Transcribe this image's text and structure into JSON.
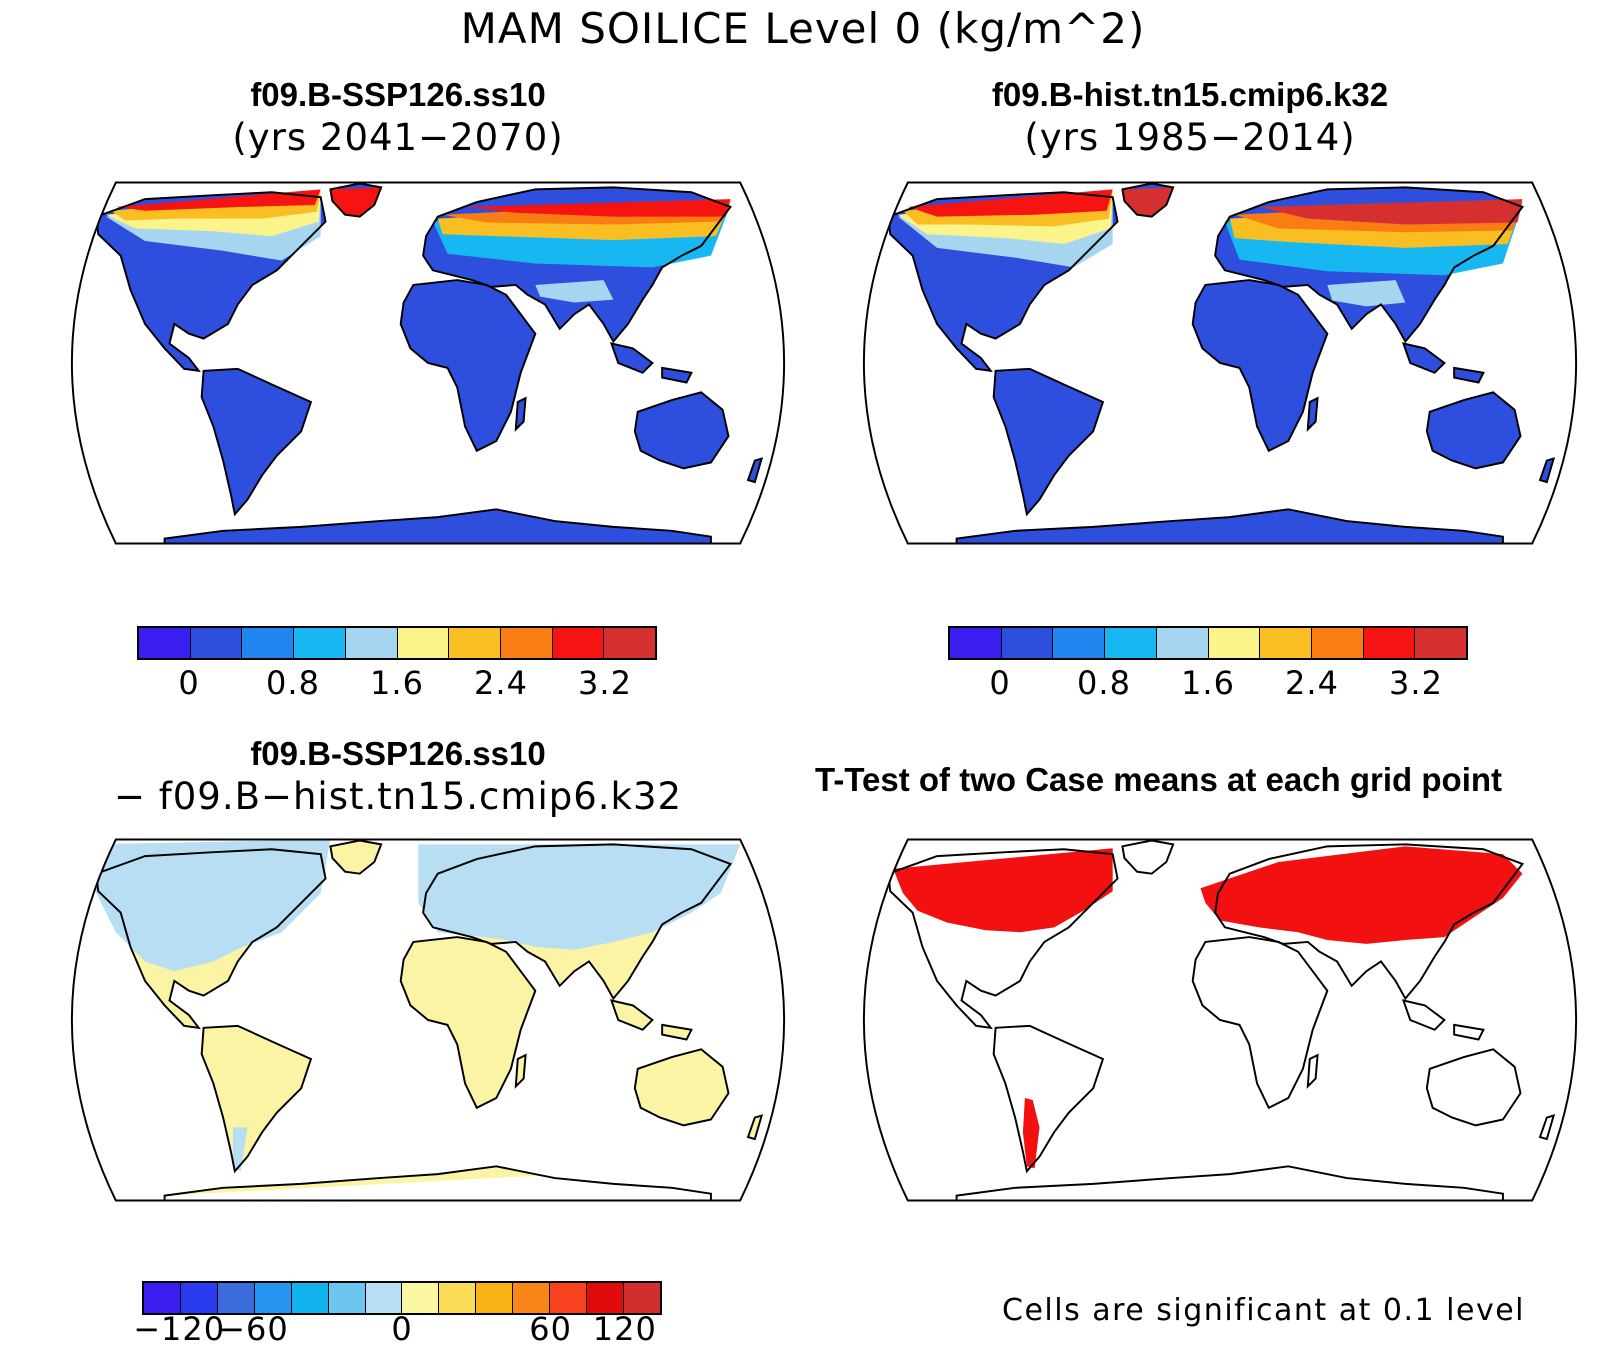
{
  "title": "MAM SOILICE Level 0 (kg/m^2)",
  "panels": [
    {
      "title": "f09.B-SSP126.ss10",
      "subtitle": "(yrs 2041−2070)",
      "fill": "blue-model"
    },
    {
      "title": "f09.B-hist.tn15.cmip6.k32",
      "subtitle": "(yrs 1985−2014)",
      "fill": "blue-model"
    },
    {
      "title": "f09.B-SSP126.ss10",
      "subtitle": "− f09.B−hist.tn15.cmip6.k32",
      "fill": "difference"
    },
    {
      "title": "T-Test of two Case means at each grid point",
      "subtitle": "",
      "fill": "ttest"
    }
  ],
  "colorbars": {
    "model": {
      "colors": [
        "#3a1ef0",
        "#2e4fdd",
        "#1f86f0",
        "#17b8f2",
        "#a6d6ef",
        "#fbf48a",
        "#f9be21",
        "#f97d12",
        "#f51411",
        "#d5302f"
      ],
      "tick_labels": [
        "0",
        "0.8",
        "1.6",
        "2.4",
        "3.2"
      ]
    },
    "diff": {
      "colors": [
        "#3a1ef0",
        "#2a3bf2",
        "#3a6cdb",
        "#2594ef",
        "#11b3ef",
        "#6cc6ef",
        "#b7def2",
        "#fbf6a4",
        "#fbdc56",
        "#f9b214",
        "#f98717",
        "#f9421d",
        "#e20b0b",
        "#d22e2d"
      ],
      "tick_labels": [
        "−120",
        "−60",
        "0",
        "60",
        "120"
      ]
    }
  },
  "significance_note": "Cells are significant at 0.1 level",
  "colors": {
    "land_base": "#2e4fdd",
    "ocean": "#ffffff",
    "significant": "#f21010",
    "diff_north": "#b7def2",
    "diff_south": "#fbf4a4"
  }
}
